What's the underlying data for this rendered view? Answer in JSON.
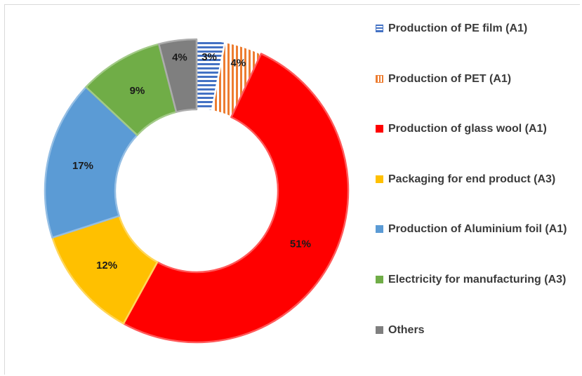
{
  "chart_data": {
    "type": "pie",
    "donut": true,
    "title": "",
    "legend_position": "right",
    "slices": [
      {
        "label": "Production of PE film (A1)",
        "value": 3,
        "value_label": "3%",
        "color": "#4472c4",
        "pattern": "horizontal-stripes"
      },
      {
        "label": "Production of PET (A1)",
        "value": 4,
        "value_label": "4%",
        "color": "#ed7d31",
        "pattern": "vertical-stripes"
      },
      {
        "label": "Production of glass wool (A1)",
        "value": 51,
        "value_label": "51%",
        "color": "#ff0000",
        "pattern": "solid"
      },
      {
        "label": "Packaging for end product (A3)",
        "value": 12,
        "value_label": "12%",
        "color": "#ffc000",
        "pattern": "solid"
      },
      {
        "label": "Production of Aluminium foil (A1)",
        "value": 17,
        "value_label": "17%",
        "color": "#5b9bd5",
        "pattern": "solid"
      },
      {
        "label": "Electricity for manufacturing (A3)",
        "value": 9,
        "value_label": "9%",
        "color": "#70ad47",
        "pattern": "solid"
      },
      {
        "label": "Others",
        "value": 4,
        "value_label": "4%",
        "color": "#7f7f7f",
        "pattern": "solid"
      }
    ]
  }
}
